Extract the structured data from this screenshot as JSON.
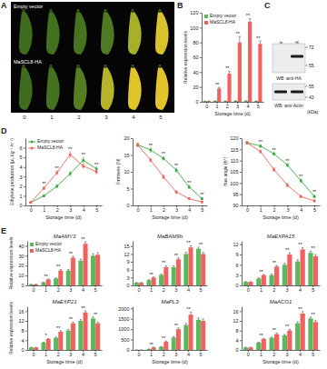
{
  "figure": {
    "panels": [
      "A",
      "B",
      "C",
      "D",
      "E"
    ],
    "panel_a": {
      "rows": [
        "Empty vector",
        "MaSCL8-HA"
      ],
      "days": [
        "0",
        "1",
        "2",
        "3",
        "4",
        "5"
      ]
    },
    "panel_c": {
      "lanes": [
        "Empty vector",
        "MaSCL8-HA"
      ],
      "blots": [
        {
          "label": "WB: anti-HA",
          "markers": [
            72,
            55
          ]
        },
        {
          "label": "WB: anti-Actin",
          "markers": [
            55,
            43
          ]
        }
      ],
      "unit": "(kDa)"
    }
  },
  "chart_data": [
    {
      "type": "bar",
      "y_label": "Relative expression levels",
      "x_label": "Storage time (d)",
      "categories": [
        "0",
        "1",
        "2",
        "3",
        "4",
        "5"
      ],
      "ylim": [
        0,
        120
      ],
      "yticks": [
        0,
        20,
        40,
        60,
        80,
        100,
        120
      ],
      "legend": "upper left",
      "series": [
        {
          "name": "Empty vector",
          "color": "#5cb85c",
          "values": [
            1,
            1.2,
            1.1,
            1.3,
            1.2,
            1.1
          ],
          "errors": [
            0.1,
            0.2,
            0.1,
            0.2,
            0.2,
            0.1
          ]
        },
        {
          "name": "MaSCL8-HA",
          "color": "#f0625d",
          "values": [
            1,
            18,
            38,
            80,
            108,
            78
          ],
          "errors": [
            0.1,
            1.5,
            3,
            8,
            4,
            4
          ],
          "significance": [
            null,
            "**",
            "**",
            "**",
            "**",
            "**"
          ]
        }
      ]
    },
    {
      "type": "line",
      "marker": "circle",
      "y_label": "Ethylene production (μL kg⁻¹ h⁻¹)",
      "x_label": "Storage time (d)",
      "categories": [
        "0",
        "1",
        "2",
        "3",
        "4",
        "5"
      ],
      "ylim": [
        0,
        7
      ],
      "yticks": [
        0,
        1,
        2,
        3,
        4,
        5,
        6
      ],
      "legend": "upper left",
      "series": [
        {
          "name": "Empty vector",
          "color": "#3aa845",
          "values": [
            0.3,
            1.0,
            2.0,
            3.3,
            4.7,
            3.8
          ],
          "errors": [
            0.05,
            0.1,
            0.15,
            0.2,
            0.25,
            0.2
          ]
        },
        {
          "name": "MaSCL8-HA",
          "color": "#f0625d",
          "values": [
            0.3,
            1.8,
            3.4,
            5.3,
            4.1,
            3.5
          ],
          "errors": [
            0.05,
            0.15,
            0.2,
            0.3,
            0.2,
            0.2
          ],
          "significance": [
            null,
            "**",
            "**",
            "**",
            "**",
            "**"
          ]
        }
      ]
    },
    {
      "type": "line",
      "marker": "circle",
      "y_label": "Firmness (N)",
      "x_label": "Storage time (d)",
      "categories": [
        "0",
        "1",
        "2",
        "3",
        "4",
        "5"
      ],
      "ylim": [
        0,
        20
      ],
      "yticks": [
        0,
        5,
        10,
        15,
        20
      ],
      "series": [
        {
          "color": "#3aa845",
          "values": [
            18,
            16.5,
            14,
            10.5,
            5.5,
            2
          ],
          "errors": [
            0.5,
            0.6,
            0.5,
            0.6,
            0.5,
            0.3
          ]
        },
        {
          "color": "#f0625d",
          "values": [
            18,
            13.5,
            8.5,
            4,
            2,
            1
          ],
          "errors": [
            0.5,
            0.5,
            0.6,
            0.4,
            0.3,
            0.2
          ],
          "significance": [
            null,
            "**",
            "**",
            "**",
            "**",
            "**"
          ]
        }
      ]
    },
    {
      "type": "line",
      "marker": "circle",
      "y_label": "Hue angle (h°)",
      "x_label": "Storage time (d)",
      "categories": [
        "0",
        "1",
        "2",
        "3",
        "4",
        "5"
      ],
      "ylim": [
        90,
        120
      ],
      "yticks": [
        90,
        95,
        100,
        105,
        110,
        115,
        120
      ],
      "series": [
        {
          "color": "#3aa845",
          "values": [
            118,
            116.5,
            113,
            108,
            101,
            94
          ],
          "errors": [
            0.5,
            0.6,
            0.6,
            0.7,
            0.8,
            0.6
          ]
        },
        {
          "color": "#f0625d",
          "values": [
            118,
            114,
            106,
            99,
            94,
            92
          ],
          "errors": [
            0.5,
            0.6,
            0.8,
            0.8,
            0.6,
            0.5
          ],
          "significance": [
            null,
            "**",
            "**",
            "**",
            "**",
            "**"
          ]
        }
      ]
    },
    {
      "type": "bar",
      "title": "MaAMY3",
      "y_label": "Relative expression levels",
      "categories": [
        "0",
        "1",
        "2",
        "3",
        "4",
        "5"
      ],
      "ylim": [
        0,
        45
      ],
      "yticks": [
        0,
        10,
        20,
        30,
        40
      ],
      "legend": "upper left",
      "series": [
        {
          "name": "Empty vector",
          "color": "#5cb85c",
          "values": [
            1,
            3,
            7,
            15,
            25,
            30
          ],
          "errors": [
            0.1,
            0.3,
            0.6,
            1,
            1.5,
            2
          ]
        },
        {
          "name": "MaSCL8-HA",
          "color": "#f0625d",
          "values": [
            1,
            6,
            15,
            28,
            42,
            31
          ],
          "errors": [
            0.1,
            0.5,
            1,
            1.5,
            2,
            2
          ],
          "significance": [
            null,
            "**",
            "**",
            "**",
            "**",
            null
          ]
        }
      ]
    },
    {
      "type": "bar",
      "title": "MaBAM9b",
      "categories": [
        "0",
        "1",
        "2",
        "3",
        "4",
        "5"
      ],
      "ylim": [
        0,
        17
      ],
      "yticks": [
        0,
        3,
        6,
        9,
        12,
        15
      ],
      "series": [
        {
          "color": "#5cb85c",
          "values": [
            1,
            2,
            4,
            7,
            12,
            14
          ],
          "errors": [
            0.1,
            0.2,
            0.3,
            0.5,
            0.6,
            0.6
          ]
        },
        {
          "color": "#f0625d",
          "values": [
            1,
            3,
            7,
            10,
            14.5,
            12
          ],
          "errors": [
            0.1,
            0.2,
            0.4,
            0.5,
            0.6,
            0.6
          ],
          "significance": [
            null,
            "**",
            "**",
            "**",
            "**",
            "**"
          ]
        }
      ]
    },
    {
      "type": "bar",
      "title": "MaEXPA15",
      "categories": [
        "0",
        "1",
        "2",
        "3",
        "4",
        "5"
      ],
      "ylim": [
        0,
        13
      ],
      "yticks": [
        0,
        3,
        6,
        9,
        12
      ],
      "series": [
        {
          "color": "#5cb85c",
          "values": [
            1,
            2,
            3,
            6,
            7,
            9.5
          ],
          "errors": [
            0.1,
            0.2,
            0.3,
            0.4,
            0.5,
            0.5
          ]
        },
        {
          "color": "#f0625d",
          "values": [
            1,
            3,
            5.5,
            9,
            10.5,
            8.5
          ],
          "errors": [
            0.1,
            0.2,
            0.3,
            0.5,
            0.5,
            0.5
          ],
          "significance": [
            null,
            "**",
            "**",
            "**",
            "**",
            "**"
          ]
        }
      ]
    },
    {
      "type": "bar",
      "title": "MaEXP21",
      "y_label": "Relative expression levels",
      "x_label": "Storage time (d)",
      "categories": [
        "0",
        "1",
        "2",
        "3",
        "4",
        "5"
      ],
      "ylim": [
        0,
        18
      ],
      "yticks": [
        0,
        4,
        8,
        12,
        16
      ],
      "series": [
        {
          "color": "#5cb85c",
          "values": [
            1,
            3,
            5,
            8,
            12,
            13
          ],
          "errors": [
            0.1,
            0.2,
            0.3,
            0.4,
            0.5,
            0.6
          ]
        },
        {
          "color": "#f0625d",
          "values": [
            1,
            4.5,
            7.5,
            11,
            15.5,
            11
          ],
          "errors": [
            0.1,
            0.2,
            0.4,
            0.5,
            0.6,
            0.5
          ],
          "significance": [
            null,
            "*",
            "**",
            "**",
            "**",
            "**"
          ]
        }
      ]
    },
    {
      "type": "bar",
      "title": "MaPL3",
      "x_label": "Storage time (d)",
      "categories": [
        "0",
        "1",
        "2",
        "3",
        "4",
        "5"
      ],
      "ylim": [
        0,
        2100
      ],
      "yticks": [
        0,
        500,
        1000,
        1500,
        2000
      ],
      "series": [
        {
          "color": "#5cb85c",
          "values": [
            5,
            40,
            150,
            600,
            1200,
            1450
          ],
          "errors": [
            1,
            5,
            15,
            40,
            80,
            90
          ]
        },
        {
          "color": "#f0625d",
          "values": [
            5,
            120,
            400,
            1000,
            1700,
            1400
          ],
          "errors": [
            1,
            10,
            30,
            60,
            120,
            90
          ],
          "significance": [
            null,
            "**",
            "**",
            "**",
            "**",
            null
          ]
        }
      ]
    },
    {
      "type": "bar",
      "title": "MaACO1",
      "x_label": "Storage time (d)",
      "categories": [
        "0",
        "1",
        "2",
        "3",
        "4",
        "5"
      ],
      "ylim": [
        0,
        18
      ],
      "yticks": [
        0,
        4,
        8,
        12,
        16
      ],
      "series": [
        {
          "color": "#5cb85c",
          "values": [
            1,
            3,
            5,
            6,
            11,
            13
          ],
          "errors": [
            0.1,
            0.2,
            0.3,
            0.4,
            0.6,
            0.6
          ]
        },
        {
          "color": "#f0625d",
          "values": [
            1,
            4.5,
            6.5,
            8,
            15,
            11.5
          ],
          "errors": [
            0.1,
            0.3,
            0.4,
            0.5,
            0.8,
            0.6
          ],
          "significance": [
            null,
            "**",
            "**",
            "**",
            "**",
            "**"
          ]
        }
      ]
    }
  ]
}
